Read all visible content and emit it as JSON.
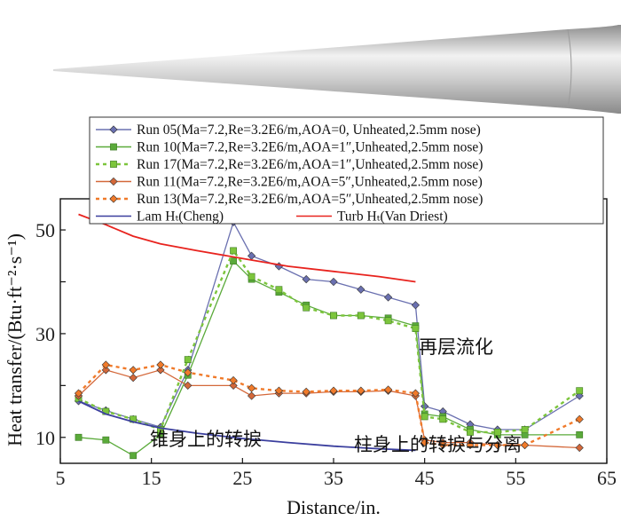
{
  "chart_data": {
    "type": "line",
    "xlabel": "Distance/in.",
    "ylabel": "Heat transfer/(Btu·ft⁻²·s⁻¹)",
    "xlim": [
      5,
      65
    ],
    "ylim": [
      5,
      56
    ],
    "xticks": [
      "5",
      "15",
      "25",
      "35",
      "45",
      "55",
      "65"
    ],
    "yticks": [
      "10",
      "30",
      "50"
    ],
    "grid": false,
    "legend_position": "top",
    "series": [
      {
        "name": "Run 05",
        "label": "Run 05(Ma=7.2,Re=3.2E6/m,AOA=0,  Unheated,2.5mm nose)",
        "color": "#6a70b0",
        "marker": "diamond",
        "dash": "solid",
        "x": [
          7,
          10,
          13,
          16,
          19,
          24,
          26,
          29,
          32,
          35,
          38,
          41,
          44,
          45,
          47,
          50,
          53,
          56,
          62
        ],
        "y": [
          17,
          15.2,
          13.5,
          12,
          23,
          51.5,
          45,
          43,
          40.5,
          40,
          38.5,
          37,
          35.5,
          16,
          15,
          12.5,
          11.5,
          11.5,
          18
        ]
      },
      {
        "name": "Run 10",
        "label": "Run 10(Ma=7.2,Re=3.2E6/m,AOA=1″,Unheated,2.5mm nose)",
        "color": "#5aaa3a",
        "marker": "square",
        "dash": "solid",
        "x": [
          7,
          10,
          13,
          16,
          19,
          24,
          26,
          29,
          32,
          35,
          38,
          41,
          44,
          45,
          47,
          50,
          53,
          56,
          62
        ],
        "y": [
          10,
          9.5,
          6.5,
          10.5,
          22,
          44,
          40.5,
          38,
          35.5,
          33.5,
          33.5,
          33,
          31.5,
          14.5,
          14,
          11.5,
          10.5,
          10.5,
          10.5
        ]
      },
      {
        "name": "Run 17",
        "label": "Run 17(Ma=7.2,Re=3.2E6/m,AOA=1″,Unheated,2.5mm nose)",
        "color": "#7cc53c",
        "marker": "square",
        "dash": "dotted",
        "x": [
          7,
          10,
          13,
          16,
          19,
          24,
          26,
          29,
          32,
          35,
          38,
          41,
          44,
          45,
          47,
          50,
          53,
          56,
          62
        ],
        "y": [
          17.5,
          15,
          13.5,
          11.5,
          25,
          46,
          41,
          38.5,
          35,
          33.5,
          33.5,
          32.5,
          31,
          14,
          13.5,
          11,
          11,
          11.5,
          19
        ]
      },
      {
        "name": "Run 11",
        "label": "Run 11(Ma=7.2,Re=3.2E6/m,AOA=5″,Unheated,2.5mm nose)",
        "color": "#d4683a",
        "marker": "diamond",
        "dash": "solid",
        "x": [
          7,
          10,
          13,
          16,
          19,
          24,
          26,
          29,
          32,
          35,
          38,
          41,
          44,
          45,
          47,
          50,
          53,
          56,
          62
        ],
        "y": [
          18,
          23,
          21.5,
          23,
          20,
          20,
          18,
          18.5,
          18.5,
          18.8,
          18.8,
          19,
          18,
          9.5,
          9,
          9,
          8.5,
          8.5,
          8
        ]
      },
      {
        "name": "Run 13",
        "label": "Run 13(Ma=7.2,Re=3.2E6/m,AOA=5″,Unheated,2.5mm nose)",
        "color": "#f07a2a",
        "marker": "diamond",
        "dash": "dotted",
        "x": [
          7,
          10,
          13,
          16,
          19,
          24,
          26,
          29,
          32,
          35,
          38,
          41,
          44,
          45,
          47,
          50,
          53,
          56,
          62
        ],
        "y": [
          18.5,
          24,
          23,
          24,
          22.5,
          21,
          19.5,
          19,
          18.8,
          19,
          19,
          19.2,
          18.5,
          9,
          8.5,
          8.5,
          8.5,
          8.5,
          13.5
        ]
      },
      {
        "name": "Lam Ht",
        "label": "Lam Hₜ(Cheng)",
        "color": "#3b3f9e",
        "marker": "none",
        "dash": "solid",
        "x": [
          7,
          10,
          13,
          16,
          20,
          25,
          30,
          35,
          40,
          44
        ],
        "y": [
          17,
          14.5,
          13,
          11.8,
          10.8,
          9.8,
          9,
          8.3,
          7.8,
          7.5
        ]
      },
      {
        "name": "Turb Ht",
        "label": "Turb Hₜ(Van Driest)",
        "color": "#e8231e",
        "marker": "none",
        "dash": "solid",
        "x": [
          7,
          10,
          13,
          16,
          20,
          25,
          30,
          35,
          40,
          44
        ],
        "y": [
          53,
          51,
          48.8,
          47.3,
          46,
          44.5,
          43,
          42,
          41,
          40
        ]
      }
    ],
    "legend_rows": [
      [
        "Run 05"
      ],
      [
        "Run 10"
      ],
      [
        "Run 17"
      ],
      [
        "Run 11"
      ],
      [
        "Run 13"
      ],
      [
        "Lam Ht",
        "Turb Ht"
      ]
    ],
    "annotations": [
      {
        "text": "再层流化",
        "x": 48.5,
        "y": 25.2
      },
      {
        "text": "锥身上的转捩",
        "x": 14,
        "y": 6
      },
      {
        "text": "柱身上的转捩与分离",
        "x": 45,
        "y": 5
      }
    ]
  }
}
